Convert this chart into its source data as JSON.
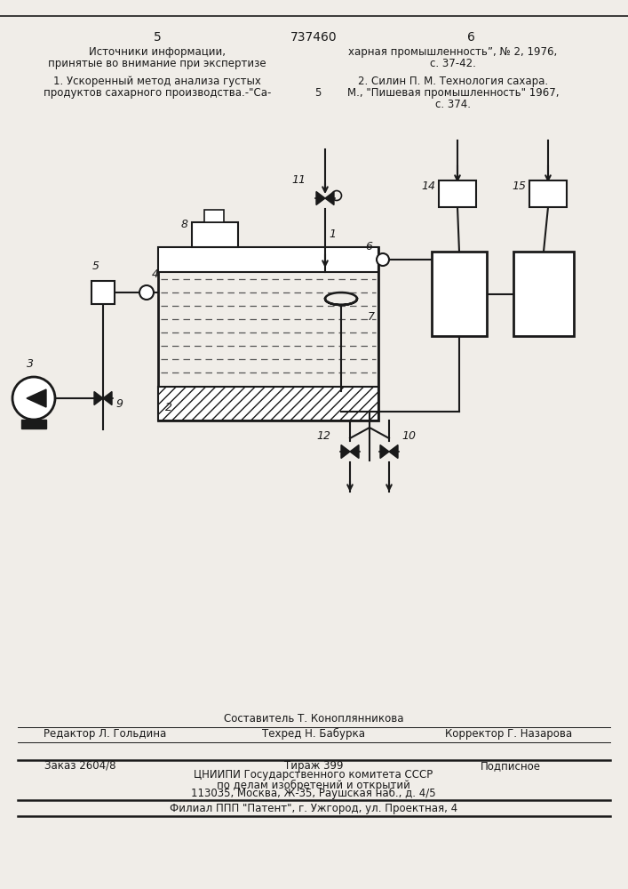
{
  "page_number_left": "5",
  "patent_number": "737460",
  "page_number_right": "6",
  "header_left_line1": "Источники информации,",
  "header_left_line2": "принятые во внимание при экспертизе",
  "header_right_line1": "харная промышленность”, № 2, 1976,",
  "header_right_line2": "с. 37-42.",
  "ref1_left_line1": "1. Ускоренный метод анализа густых",
  "ref1_left_line2": "продуктов сахарного производства.-\"Са-",
  "ref1_right_num": "5",
  "ref2_line1": "2. Силин П. М. Технология сахара.",
  "ref2_line2": "М., \"Пишевая промышленность\" 1967,",
  "ref2_line3": "с. 374.",
  "footer_composer": "Составитель Т. Коноплянникова",
  "footer_editor": "Редактор Л. Гольдина",
  "footer_techred": "Техред Н. Бабурка",
  "footer_corrector": "Корректор Г. Назарова",
  "footer_order": "Заказ 2604/8",
  "footer_circulation": "Тираж 399",
  "footer_subscription": "Подписное",
  "footer_org1": "ЦНИИПИ Государственного комитета СССР",
  "footer_org2": "по делам изобретений и открытий",
  "footer_address": "113035, Москва, Ж-35, Раушская наб., д. 4/5",
  "footer_branch": "Филиал ППП \"Патент\", г. Ужгород, ул. Проектная, 4",
  "bg_color": "#f0ede8",
  "line_color": "#1a1a1a",
  "text_color": "#1a1a1a"
}
